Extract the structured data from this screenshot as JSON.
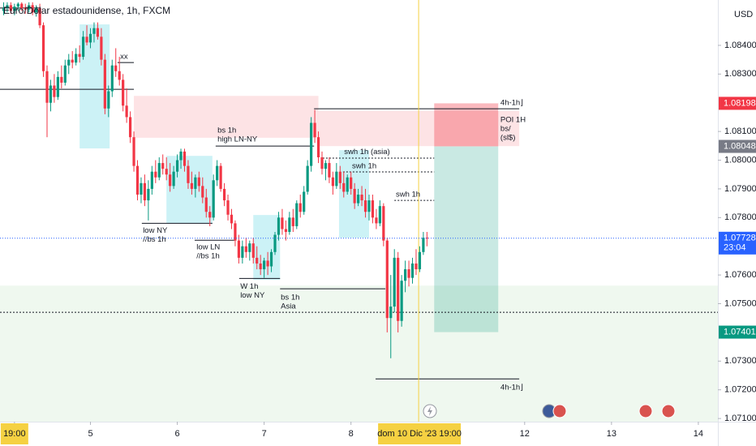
{
  "chart_data": {
    "type": "candlestick",
    "title": "Euro/Dólar estadounidense, 1h, FXCM",
    "currency": "USD",
    "up_color": "#089981",
    "down_color": "#f23645",
    "xlim": [
      0,
      198.4
    ],
    "ylim": [
      1.07089,
      1.08558
    ],
    "xticks": [
      {
        "value": 4,
        "label": "19:00"
      },
      {
        "value": 25,
        "label": "5"
      },
      {
        "value": 49,
        "label": "6"
      },
      {
        "value": 73,
        "label": "7"
      },
      {
        "value": 97,
        "label": "8"
      },
      {
        "value": 145,
        "label": "12"
      },
      {
        "value": 169,
        "label": "13"
      },
      {
        "value": 193,
        "label": "14"
      }
    ],
    "crosshair": {
      "value": 115.7,
      "label": "dom 10 Dic '23   19:00"
    },
    "yticks": [
      {
        "value": 1.084,
        "label": "1.08400"
      },
      {
        "value": 1.083,
        "label": "1.08300"
      },
      {
        "value": 1.081,
        "label": "1.08100"
      },
      {
        "value": 1.08,
        "label": "1.08000"
      },
      {
        "value": 1.079,
        "label": "1.07900"
      },
      {
        "value": 1.078,
        "label": "1.07800"
      },
      {
        "value": 1.076,
        "label": "1.07600"
      },
      {
        "value": 1.075,
        "label": "1.07500"
      },
      {
        "value": 1.073,
        "label": "1.07300"
      },
      {
        "value": 1.072,
        "label": "1.07200"
      },
      {
        "value": 1.071,
        "label": "1.07100"
      }
    ],
    "price_labels": [
      {
        "value": 1.08198,
        "color": "#f23645",
        "line": false
      },
      {
        "value": 1.08048,
        "color": "#787b86",
        "line": false
      },
      {
        "value": 1.07728,
        "sub": "23:04",
        "color": "#2962ff",
        "line": true
      },
      {
        "value": 1.07401,
        "color": "#089981",
        "line": false
      }
    ],
    "zones": [
      {
        "x0": 0,
        "x1": 198.4,
        "y0": 1.07563,
        "y1": 1.07089,
        "color": "rgba(76,175,80,0.09)"
      },
      {
        "x0": 37,
        "x1": 88,
        "y0": 1.08224,
        "y1": 1.08078,
        "color": "rgba(242,54,69,0.14)"
      },
      {
        "x0": 88,
        "x1": 143.5,
        "y0": 1.08171,
        "y1": 1.08049,
        "color": "rgba(242,54,69,0.14)"
      },
      {
        "x0": 120,
        "x1": 137.7,
        "y0": 1.08198,
        "y1": 1.08048,
        "color": "rgba(242,54,69,0.35)"
      },
      {
        "x0": 120,
        "x1": 137.7,
        "y0": 1.08048,
        "y1": 1.07401,
        "color": "rgba(8,153,129,0.22)"
      },
      {
        "x0": 22,
        "x1": 30.3,
        "y0": 1.08473,
        "y1": 1.08041,
        "color": "rgba(0,188,212,0.2)"
      },
      {
        "x0": 46,
        "x1": 58.7,
        "y0": 1.08015,
        "y1": 1.07781,
        "color": "rgba(0,188,212,0.2)"
      },
      {
        "x0": 70,
        "x1": 77.4,
        "y0": 1.07809,
        "y1": 1.07583,
        "color": "rgba(0,188,212,0.2)"
      },
      {
        "x0": 93.7,
        "x1": 102,
        "y0": 1.08035,
        "y1": 1.0773,
        "color": "rgba(0,188,212,0.2)"
      }
    ],
    "levels": [
      {
        "x0": 0,
        "x1": 37,
        "y": 1.08247,
        "dash": false
      },
      {
        "x0": 0,
        "x1": 11.2,
        "y": 1.0853,
        "dash": false
      },
      {
        "x0": 32.5,
        "x1": 37,
        "y": 1.0834,
        "dash": false
      },
      {
        "x0": 59.6,
        "x1": 86.8,
        "y": 1.08049,
        "dash": false
      },
      {
        "x0": 86.8,
        "x1": 143.5,
        "y": 1.08179,
        "dash": false
      },
      {
        "x0": 89.2,
        "x1": 120,
        "y": 1.08007,
        "dash": true
      },
      {
        "x0": 94.8,
        "x1": 120,
        "y": 1.07959,
        "dash": true
      },
      {
        "x0": 109,
        "x1": 120,
        "y": 1.0786,
        "dash": true
      },
      {
        "x0": 39.2,
        "x1": 58.7,
        "y": 1.0778,
        "dash": false
      },
      {
        "x0": 53.8,
        "x1": 65,
        "y": 1.07721,
        "dash": false
      },
      {
        "x0": 66.1,
        "x1": 77.4,
        "y": 1.07588,
        "dash": false
      },
      {
        "x0": 77.4,
        "x1": 106.5,
        "y": 1.07552,
        "dash": false
      },
      {
        "x0": 103.8,
        "x1": 143.5,
        "y": 1.07238,
        "dash": false
      },
      {
        "x0": 0,
        "x1": 198.4,
        "y": 1.0747,
        "dash": true
      }
    ],
    "annotations": [
      {
        "x": 33.2,
        "y": 1.0836,
        "lines": [
          "xx"
        ]
      },
      {
        "x": 60.1,
        "y": 1.08103,
        "lines": [
          "bs 1h",
          "high LN-NY"
        ]
      },
      {
        "x": 138.3,
        "y": 1.08199,
        "lines": [
          "4h-1h⌋"
        ]
      },
      {
        "x": 138.3,
        "y": 1.0814,
        "lines": [
          "POI 1H",
          "bs/",
          "(sl$)"
        ]
      },
      {
        "x": 95.1,
        "y": 1.08029,
        "lines": [
          "swh 1h (asia)"
        ]
      },
      {
        "x": 97.3,
        "y": 1.07979,
        "lines": [
          "swh 1h"
        ]
      },
      {
        "x": 109.4,
        "y": 1.0788,
        "lines": [
          "swh 1h"
        ]
      },
      {
        "x": 39.5,
        "y": 1.07755,
        "lines": [
          "low NY",
          "//bs 1h"
        ]
      },
      {
        "x": 54.3,
        "y": 1.07696,
        "lines": [
          "low LN",
          "//bs 1h"
        ]
      },
      {
        "x": 66.4,
        "y": 1.0756,
        "lines": [
          "W 1h",
          "low NY"
        ]
      },
      {
        "x": 77.6,
        "y": 1.07521,
        "lines": [
          "bs 1h",
          "Asia"
        ]
      },
      {
        "x": 138.3,
        "y": 1.07207,
        "lines": [
          "4h-1h⌋"
        ]
      }
    ],
    "x": [
      1,
      2,
      3,
      4,
      5,
      6,
      7,
      8,
      9,
      10,
      11,
      12,
      13,
      14,
      15,
      16,
      17,
      18,
      19,
      20,
      21,
      22,
      23,
      24,
      25,
      26,
      27,
      28,
      29,
      30,
      31,
      32,
      33,
      34,
      35,
      36,
      37,
      38,
      39,
      40,
      41,
      42,
      43,
      44,
      45,
      46,
      47,
      48,
      49,
      50,
      51,
      52,
      53,
      54,
      55,
      56,
      57,
      58,
      59,
      60,
      61,
      62,
      63,
      64,
      65,
      66,
      67,
      68,
      69,
      70,
      71,
      72,
      73,
      74,
      75,
      76,
      77,
      78,
      79,
      80,
      81,
      82,
      83,
      84,
      85,
      86,
      87,
      88,
      89,
      90,
      91,
      92,
      93,
      94,
      95,
      96,
      97,
      98,
      99,
      100,
      101,
      102,
      103,
      104,
      105,
      106,
      107,
      108,
      109,
      110,
      111,
      112,
      113,
      114,
      115,
      116,
      117,
      118
    ],
    "candles": [
      [
        1.0852,
        1.0855,
        1.08505,
        1.0853
      ],
      [
        1.0853,
        1.0855,
        1.08515,
        1.0854
      ],
      [
        1.0854,
        1.0855,
        1.0851,
        1.0852
      ],
      [
        1.0852,
        1.08545,
        1.08505,
        1.08535
      ],
      [
        1.08535,
        1.0855,
        1.0852,
        1.08545
      ],
      [
        1.08545,
        1.0855,
        1.0852,
        1.0853
      ],
      [
        1.0853,
        1.08545,
        1.0851,
        1.08525
      ],
      [
        1.08525,
        1.0855,
        1.08515,
        1.0854
      ],
      [
        1.0854,
        1.0855,
        1.08505,
        1.08515
      ],
      [
        1.08515,
        1.0854,
        1.085,
        1.0853
      ],
      [
        1.0853,
        1.08545,
        1.0846,
        1.0847
      ],
      [
        1.0847,
        1.0848,
        1.0829,
        1.0831
      ],
      [
        1.0831,
        1.0833,
        1.0808,
        1.082
      ],
      [
        1.082,
        1.0828,
        1.0817,
        1.0826
      ],
      [
        1.0826,
        1.083,
        1.082,
        1.0822
      ],
      [
        1.0822,
        1.0831,
        1.0821,
        1.0829
      ],
      [
        1.0829,
        1.0833,
        1.0825,
        1.0827
      ],
      [
        1.0827,
        1.0835,
        1.0826,
        1.0833
      ],
      [
        1.0833,
        1.0837,
        1.083,
        1.0835
      ],
      [
        1.0835,
        1.0838,
        1.0832,
        1.0834
      ],
      [
        1.0834,
        1.0839,
        1.0833,
        1.0837
      ],
      [
        1.0837,
        1.084,
        1.0834,
        1.0836
      ],
      [
        1.0836,
        1.0845,
        1.0835,
        1.0843
      ],
      [
        1.0843,
        1.0847,
        1.084,
        1.0841
      ],
      [
        1.0841,
        1.0846,
        1.0839,
        1.0844
      ],
      [
        1.0844,
        1.0848,
        1.0841,
        1.0846
      ],
      [
        1.0846,
        1.0848,
        1.0842,
        1.0843
      ],
      [
        1.0843,
        1.0846,
        1.0833,
        1.0835
      ],
      [
        1.0835,
        1.0837,
        1.0816,
        1.0818
      ],
      [
        1.0818,
        1.0826,
        1.0815,
        1.0824
      ],
      [
        1.0824,
        1.0835,
        1.0822,
        1.0833
      ],
      [
        1.0833,
        1.0839,
        1.0829,
        1.0831
      ],
      [
        1.0831,
        1.0836,
        1.0826,
        1.0828
      ],
      [
        1.0828,
        1.083,
        1.0817,
        1.0819
      ],
      [
        1.0819,
        1.0825,
        1.0813,
        1.0815
      ],
      [
        1.0815,
        1.0817,
        1.0806,
        1.0808
      ],
      [
        1.0808,
        1.081,
        1.0796,
        1.0798
      ],
      [
        1.0798,
        1.08,
        1.0786,
        1.0788
      ],
      [
        1.0788,
        1.0794,
        1.0785,
        1.0792
      ],
      [
        1.0792,
        1.0795,
        1.0784,
        1.0786
      ],
      [
        1.0786,
        1.0793,
        1.0779,
        1.079
      ],
      [
        1.079,
        1.0798,
        1.0788,
        1.0796
      ],
      [
        1.0796,
        1.08,
        1.0792,
        1.0794
      ],
      [
        1.0794,
        1.0801,
        1.0793,
        1.0799
      ],
      [
        1.0799,
        1.0802,
        1.0795,
        1.0797
      ],
      [
        1.0797,
        1.0801,
        1.0793,
        1.0795
      ],
      [
        1.0795,
        1.0799,
        1.0789,
        1.0791
      ],
      [
        1.0791,
        1.0798,
        1.079,
        1.0796
      ],
      [
        1.0796,
        1.0802,
        1.0794,
        1.08
      ],
      [
        1.08,
        1.0804,
        1.0797,
        1.0803
      ],
      [
        1.0803,
        1.0804,
        1.0796,
        1.0798
      ],
      [
        1.0798,
        1.08,
        1.079,
        1.0792
      ],
      [
        1.0792,
        1.0796,
        1.0788,
        1.079
      ],
      [
        1.079,
        1.0795,
        1.0787,
        1.0794
      ],
      [
        1.0794,
        1.0796,
        1.0789,
        1.0791
      ],
      [
        1.0791,
        1.0794,
        1.0785,
        1.0787
      ],
      [
        1.0787,
        1.079,
        1.078,
        1.0782
      ],
      [
        1.0782,
        1.0784,
        1.0777,
        1.078
      ],
      [
        1.078,
        1.0795,
        1.0779,
        1.0793
      ],
      [
        1.0793,
        1.08,
        1.0791,
        1.0798
      ],
      [
        1.0798,
        1.0799,
        1.0789,
        1.079
      ],
      [
        1.079,
        1.0792,
        1.0784,
        1.0786
      ],
      [
        1.0786,
        1.0788,
        1.0779,
        1.0781
      ],
      [
        1.0781,
        1.0783,
        1.0776,
        1.0778
      ],
      [
        1.0778,
        1.0779,
        1.077,
        1.0772
      ],
      [
        1.0772,
        1.0774,
        1.0764,
        1.0766
      ],
      [
        1.0766,
        1.0772,
        1.0764,
        1.077
      ],
      [
        1.077,
        1.0773,
        1.0766,
        1.0768
      ],
      [
        1.0768,
        1.0772,
        1.0765,
        1.0771
      ],
      [
        1.0771,
        1.0773,
        1.0764,
        1.0766
      ],
      [
        1.0766,
        1.077,
        1.0762,
        1.0764
      ],
      [
        1.0764,
        1.0767,
        1.076,
        1.0762
      ],
      [
        1.0762,
        1.0766,
        1.0759,
        1.0765
      ],
      [
        1.0765,
        1.0768,
        1.076,
        1.0763
      ],
      [
        1.0763,
        1.0769,
        1.0761,
        1.0768
      ],
      [
        1.0768,
        1.0775,
        1.0767,
        1.0774
      ],
      [
        1.0774,
        1.0782,
        1.0772,
        1.078
      ],
      [
        1.078,
        1.0783,
        1.0774,
        1.0776
      ],
      [
        1.0776,
        1.0779,
        1.0772,
        1.0775
      ],
      [
        1.0775,
        1.0782,
        1.0774,
        1.078
      ],
      [
        1.078,
        1.0783,
        1.0775,
        1.0777
      ],
      [
        1.0777,
        1.0786,
        1.0776,
        1.0785
      ],
      [
        1.0785,
        1.0788,
        1.078,
        1.0782
      ],
      [
        1.0782,
        1.0791,
        1.0781,
        1.0789
      ],
      [
        1.0789,
        1.08,
        1.0788,
        1.0798
      ],
      [
        1.0798,
        1.0815,
        1.0796,
        1.0813
      ],
      [
        1.0813,
        1.08175,
        1.0806,
        1.0808
      ],
      [
        1.0808,
        1.081,
        1.0799,
        1.0801
      ],
      [
        1.0801,
        1.0803,
        1.0795,
        1.0797
      ],
      [
        1.0797,
        1.08,
        1.0793,
        1.0799
      ],
      [
        1.0799,
        1.0801,
        1.0792,
        1.0794
      ],
      [
        1.0794,
        1.0796,
        1.0788,
        1.0791
      ],
      [
        1.0791,
        1.0799,
        1.079,
        1.0796
      ],
      [
        1.0796,
        1.0798,
        1.079,
        1.0792
      ],
      [
        1.0792,
        1.0796,
        1.0787,
        1.0789
      ],
      [
        1.0789,
        1.0795,
        1.0788,
        1.0794
      ],
      [
        1.0794,
        1.0796,
        1.0788,
        1.079
      ],
      [
        1.079,
        1.0792,
        1.0783,
        1.0785
      ],
      [
        1.0785,
        1.079,
        1.0784,
        1.0788
      ],
      [
        1.0788,
        1.0791,
        1.0784,
        1.0786
      ],
      [
        1.0786,
        1.079,
        1.078,
        1.0782
      ],
      [
        1.0782,
        1.0788,
        1.0779,
        1.0786
      ],
      [
        1.0786,
        1.0788,
        1.0778,
        1.078
      ],
      [
        1.078,
        1.0783,
        1.0776,
        1.0778
      ],
      [
        1.0778,
        1.0786,
        1.0777,
        1.0784
      ],
      [
        1.0784,
        1.0785,
        1.077,
        1.0772
      ],
      [
        1.0772,
        1.0773,
        1.074,
        1.0745
      ],
      [
        1.0745,
        1.076,
        1.0731,
        1.0749
      ],
      [
        1.0749,
        1.0769,
        1.0747,
        1.0766
      ],
      [
        1.0766,
        1.0768,
        1.074,
        1.0744
      ],
      [
        1.0744,
        1.076,
        1.0742,
        1.0758
      ],
      [
        1.0758,
        1.0765,
        1.0754,
        1.0762
      ],
      [
        1.0762,
        1.0765,
        1.0756,
        1.0759
      ],
      [
        1.0759,
        1.0766,
        1.0757,
        1.0764
      ],
      [
        1.0764,
        1.0769,
        1.076,
        1.0762
      ],
      [
        1.0762,
        1.077,
        1.0761,
        1.0768
      ],
      [
        1.0768,
        1.0775,
        1.0767,
        1.0773
      ],
      [
        1.0773,
        1.0775,
        1.077,
        1.07728
      ]
    ]
  }
}
